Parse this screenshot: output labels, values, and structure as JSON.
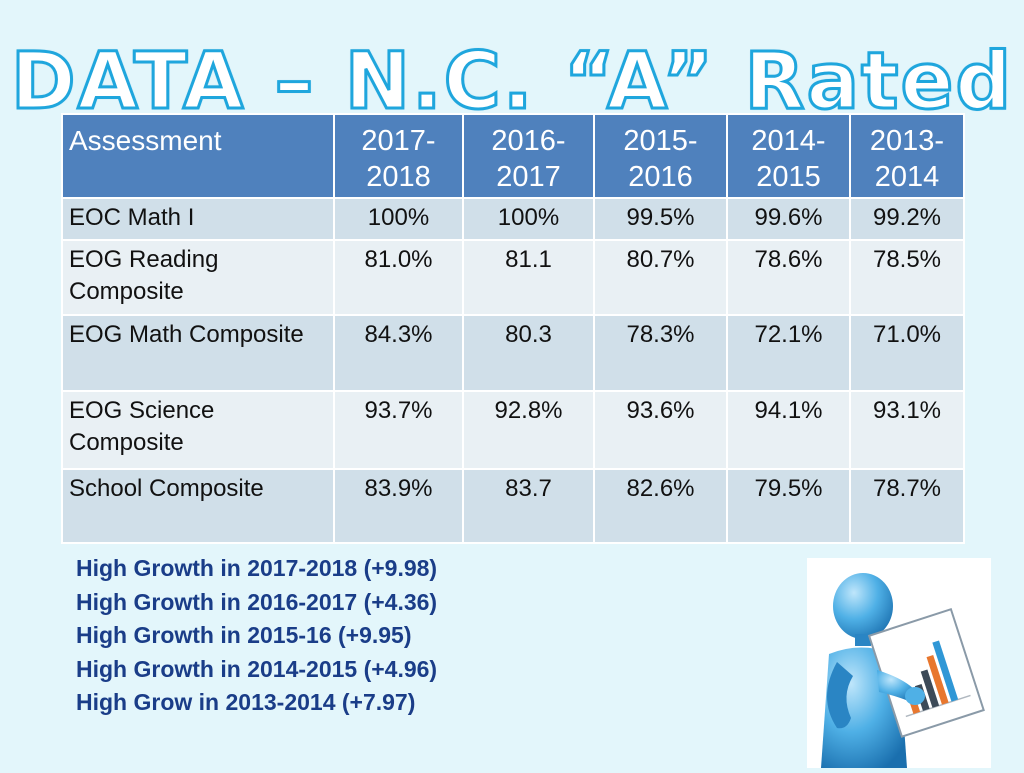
{
  "title": "DATA – N.C. “A” Rated",
  "table": {
    "headers": [
      "Assessment",
      "2017-\n2018",
      "2016-\n2017",
      "2015-\n2016",
      "2014-\n2015",
      "2013-\n2014"
    ],
    "rows": [
      {
        "label": "EOC Math I",
        "values": [
          "100%",
          "100%",
          "99.5%",
          "99.6%",
          "99.2%"
        ]
      },
      {
        "label": "EOG Reading Composite",
        "values": [
          "81.0%",
          "81.1",
          "80.7%",
          "78.6%",
          "78.5%"
        ]
      },
      {
        "label": "EOG Math Composite",
        "values": [
          "84.3%",
          "80.3",
          "78.3%",
          "72.1%",
          "71.0%"
        ]
      },
      {
        "label": "EOG Science Composite",
        "values": [
          "93.7%",
          "92.8%",
          "93.6%",
          "94.1%",
          "93.1%"
        ]
      },
      {
        "label": "School Composite",
        "values": [
          "83.9%",
          "83.7",
          "82.6%",
          "79.5%",
          "78.7%"
        ]
      }
    ]
  },
  "growth": [
    "High Growth in 2017-2018 (+9.98)",
    "High Growth in 2016-2017 (+4.36)",
    "High Growth in 2015-16 (+9.95)",
    "High Growth in 2014-2015 (+4.96)",
    "High Grow in 2013-2014 (+7.97)"
  ],
  "colors": {
    "background": "#e3f6fb",
    "header": "#4f81bd",
    "row_dark": "#d0dfe9",
    "row_light": "#e9f0f4",
    "title_outline": "#1fa6dd",
    "growth_text": "#1a3d88",
    "figure_blue": "#2f97d6"
  },
  "illustration": {
    "icon": "person-holding-chart-icon"
  }
}
